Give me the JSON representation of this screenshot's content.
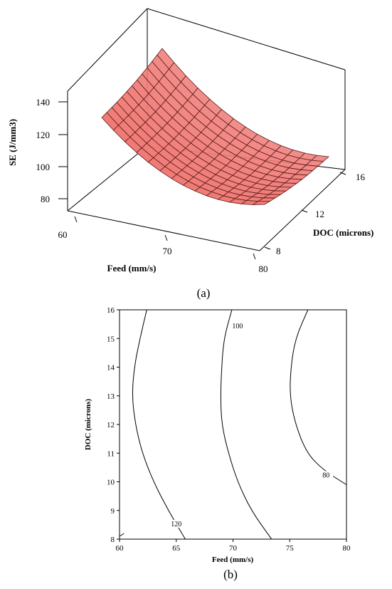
{
  "chart_data": [
    {
      "type": "surface",
      "panel_label": "(a)",
      "zlabel": "SE (J/mm3)",
      "xlabel": "Feed (mm/s)",
      "ylabel": "DOC (microns)",
      "x_ticks": [
        "60",
        "70",
        "80"
      ],
      "y_ticks": [
        "8",
        "12",
        "16"
      ],
      "z_ticks": [
        "140",
        "120",
        "100",
        "80"
      ],
      "xlim": [
        60,
        80
      ],
      "ylim": [
        8,
        16
      ],
      "surface_color": "#f07b76",
      "surface_grid_color": "#5a1a1a",
      "corner_values": [
        {
          "feed": 60,
          "doc": 8,
          "se": 140
        },
        {
          "feed": 60,
          "doc": 16,
          "se": 143
        },
        {
          "feed": 80,
          "doc": 16,
          "se": 82
        },
        {
          "feed": 80,
          "doc": 8,
          "se": 80
        }
      ]
    },
    {
      "type": "contour",
      "panel_label": "(b)",
      "xlabel": "Feed (mm/s)",
      "ylabel": "DOC (microns)",
      "x_ticks": [
        "60",
        "65",
        "70",
        "75",
        "80"
      ],
      "y_ticks": [
        "8",
        "9",
        "10",
        "11",
        "12",
        "13",
        "14",
        "15",
        "16"
      ],
      "xlim": [
        60,
        80
      ],
      "ylim": [
        8,
        16
      ],
      "levels": [
        {
          "value": 120,
          "label": "120",
          "points": [
            [
              60.0,
              8.1
            ],
            [
              60.4,
              8.2
            ]
          ]
        },
        {
          "value": 120,
          "label": "120",
          "points": [
            [
              65.8,
              8.0
            ],
            [
              64.3,
              9.0
            ],
            [
              63.0,
              10.0
            ],
            [
              62.0,
              11.0
            ],
            [
              61.4,
              12.0
            ],
            [
              61.1,
              13.0
            ],
            [
              61.3,
              14.0
            ],
            [
              61.8,
              15.0
            ],
            [
              62.4,
              16.0
            ]
          ]
        },
        {
          "value": 100,
          "label": "100",
          "points": [
            [
              73.4,
              8.0
            ],
            [
              71.6,
              9.0
            ],
            [
              70.4,
              10.0
            ],
            [
              69.6,
              11.0
            ],
            [
              69.0,
              12.0
            ],
            [
              68.9,
              13.0
            ],
            [
              69.0,
              14.0
            ],
            [
              69.2,
              15.0
            ],
            [
              69.9,
              16.0
            ]
          ]
        },
        {
          "value": 80,
          "label": "80",
          "points": [
            [
              80.0,
              9.9
            ],
            [
              78.0,
              10.4
            ],
            [
              76.5,
              11.0
            ],
            [
              75.5,
              12.0
            ],
            [
              75.0,
              13.0
            ],
            [
              75.1,
              14.0
            ],
            [
              75.5,
              15.0
            ],
            [
              76.6,
              16.0
            ]
          ]
        }
      ]
    }
  ]
}
